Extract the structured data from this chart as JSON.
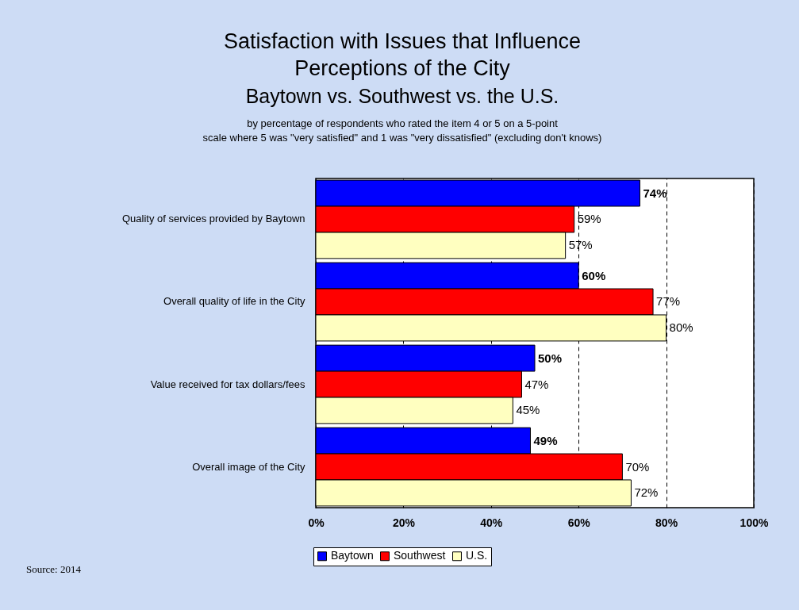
{
  "chart_data": {
    "type": "bar",
    "orientation": "horizontal",
    "title": "Satisfaction with Issues that Influence Perceptions of the City",
    "subtitle": "Baytown vs. Southwest vs. the U.S.",
    "annotations": [
      "by percentage of respondents who rated the item 4 or 5 on a 5-point scale where 5 was \"very satisfied\" and 1 was \"very dissatisfied\" (excluding don't knows)",
      "Source:  2014"
    ],
    "categories": [
      "Quality of services provided by  Baytown",
      "Overall quality of life in the City",
      "Value received for tax dollars/fees",
      "Overall image of the City"
    ],
    "series": [
      {
        "name": "Baytown",
        "color": "#0000ff",
        "values": [
          74,
          60,
          50,
          49
        ],
        "value_labels": [
          "74%",
          "60%",
          "50%",
          "49%"
        ]
      },
      {
        "name": "Southwest",
        "color": "#ff0000",
        "values": [
          59,
          77,
          47,
          70
        ],
        "value_labels": [
          "59%",
          "77%",
          "47%",
          "70%"
        ]
      },
      {
        "name": "U.S.",
        "color": "#ffffc0",
        "values": [
          57,
          80,
          45,
          72
        ],
        "value_labels": [
          "57%",
          "80%",
          "45%",
          "72%"
        ]
      }
    ],
    "xlim": [
      0,
      100
    ],
    "xticks": [
      {
        "value": 0,
        "label": "0%"
      },
      {
        "value": 20,
        "label": "20%"
      },
      {
        "value": 40,
        "label": "40%"
      },
      {
        "value": 60,
        "label": "60%"
      },
      {
        "value": 80,
        "label": "80%"
      },
      {
        "value": 100,
        "label": "100%"
      }
    ],
    "grid": "x",
    "line_style": "dashed",
    "legend": "bottom"
  }
}
